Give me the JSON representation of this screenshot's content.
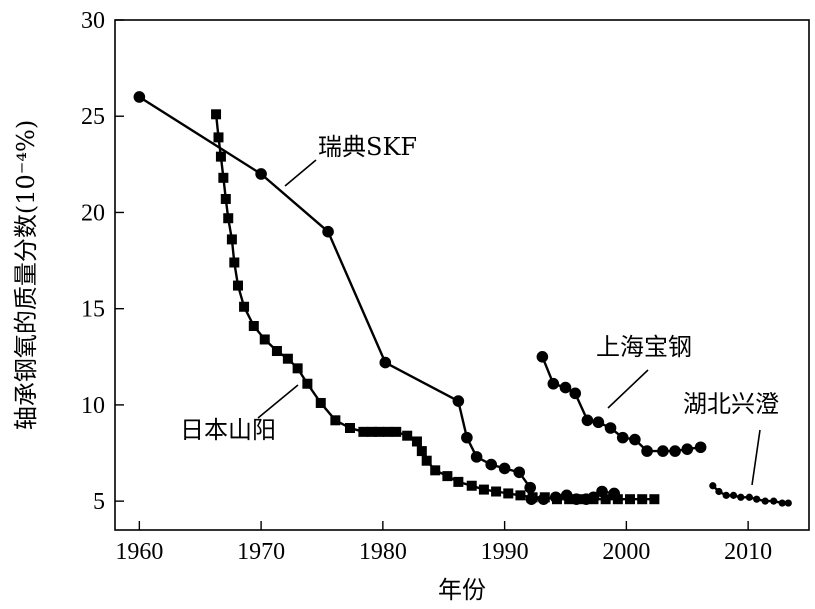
{
  "chart_data": {
    "type": "line",
    "xlabel": "年份",
    "ylabel": "轴承钢氧的质量分数(10⁻⁴%)",
    "xlim": [
      1958,
      2015
    ],
    "ylim": [
      3.5,
      30
    ],
    "x_ticks": [
      1960,
      1970,
      1980,
      1990,
      2000,
      2010
    ],
    "y_ticks": [
      5,
      10,
      15,
      20,
      25,
      30
    ],
    "x_tick_labels": [
      "1960",
      "1970",
      "1980",
      "1990",
      "2000",
      "2010"
    ],
    "y_tick_labels": [
      "5",
      "10",
      "15",
      "20",
      "25",
      "30"
    ],
    "grid": false,
    "series": [
      {
        "name": "瑞典SKF",
        "marker": "circle",
        "x": [
          1960,
          1970,
          1975.5,
          1980.2,
          1986.2,
          1986.9,
          1987.7,
          1988.9,
          1990,
          1991.2,
          1992.1
        ],
        "y": [
          26,
          22,
          19,
          12.2,
          10.2,
          8.3,
          7.3,
          6.9,
          6.7,
          6.5,
          5.7
        ]
      },
      {
        "name": "日本山阳",
        "marker": "square",
        "x": [
          1966.3,
          1966.5,
          1966.7,
          1966.9,
          1967.1,
          1967.3,
          1967.6,
          1967.8,
          1968.1,
          1968.6,
          1969.4,
          1970.3,
          1971.3,
          1972.2,
          1973,
          1973.8,
          1974.9,
          1976.1,
          1977.3,
          1978.4,
          1979.1,
          1979.7,
          1980.4,
          1981.1,
          1982,
          1982.8,
          1983.2,
          1983.6,
          1984.3,
          1985.3,
          1986.2,
          1987.3,
          1988.3,
          1989.3,
          1990.3,
          1991.3,
          1992.3,
          1993.3,
          1994.3,
          1995.3,
          1996.3,
          1997.3,
          1998.3,
          1999.3,
          2000.3,
          2001.3,
          2002.3
        ],
        "y": [
          25.1,
          23.9,
          22.9,
          21.8,
          20.7,
          19.7,
          18.6,
          17.4,
          16.2,
          15.1,
          14.1,
          13.4,
          12.8,
          12.4,
          11.9,
          11.1,
          10.1,
          9.2,
          8.8,
          8.6,
          8.6,
          8.6,
          8.6,
          8.6,
          8.4,
          8.1,
          7.6,
          7.1,
          6.6,
          6.3,
          6.0,
          5.8,
          5.6,
          5.5,
          5.4,
          5.3,
          5.2,
          5.2,
          5.1,
          5.1,
          5.1,
          5.1,
          5.1,
          5.1,
          5.1,
          5.1,
          5.1
        ]
      },
      {
        "name": "上海宝钢",
        "marker": "circle",
        "x": [
          1993.1,
          1994,
          1995,
          1995.8,
          1996.8,
          1997.7,
          1998.7,
          1999.7,
          2000.7,
          2001.7,
          2003,
          2004,
          2005,
          2006.1
        ],
        "y": [
          12.5,
          11.1,
          10.9,
          10.6,
          9.2,
          9.1,
          8.8,
          8.3,
          8.2,
          7.6,
          7.6,
          7.6,
          7.7,
          7.8
        ]
      },
      {
        "name": "湖北兴澄",
        "marker": "small-circle",
        "x": [
          2007.1,
          2007.6,
          2008.2,
          2008.8,
          2009.4,
          2010.1,
          2010.7,
          2011.4,
          2012.1,
          2012.8,
          2013.3
        ],
        "y": [
          5.8,
          5.5,
          5.3,
          5.3,
          5.2,
          5.2,
          5.1,
          5.0,
          5.0,
          4.9,
          4.9
        ]
      },
      {
        "name": "",
        "marker": "circle",
        "x": [
          1992.2,
          1993.2,
          1994.2,
          1995.1,
          1995.9,
          1996.7,
          1997.3,
          1998,
          1999
        ],
        "y": [
          5.1,
          5.1,
          5.2,
          5.3,
          5.1,
          5.1,
          5.2,
          5.5,
          5.4
        ]
      }
    ],
    "annotations": [
      {
        "text": "瑞典SKF",
        "series": "瑞典SKF"
      },
      {
        "text": "日本山阳",
        "series": "日本山阳"
      },
      {
        "text": "上海宝钢",
        "series": "上海宝钢"
      },
      {
        "text": "湖北兴澄",
        "series": "湖北兴澄"
      }
    ]
  }
}
